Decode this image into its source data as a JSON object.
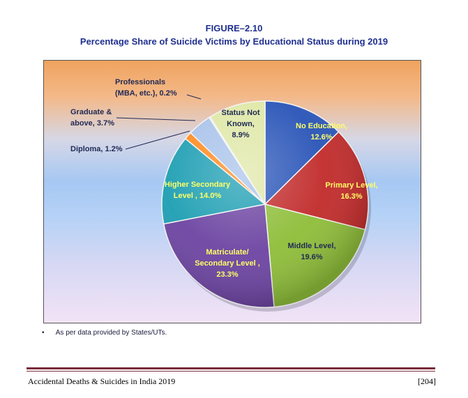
{
  "figure": {
    "number": "FIGURE–2.10",
    "title": "Percentage Share of Suicide Victims by Educational Status during 2019"
  },
  "chart_data": {
    "type": "pie",
    "title": "Percentage Share of Suicide Victims by Educational Status during 2019",
    "unit": "%",
    "slices": [
      {
        "label": "No Education",
        "value": 12.6,
        "color": "#2a55b8",
        "text_color": "#ffff66",
        "label_lines": [
          "No Education,",
          "12.6%"
        ]
      },
      {
        "label": "Primary Level",
        "value": 16.3,
        "color": "#c22c2c",
        "text_color": "#ffff66",
        "label_lines": [
          "Primary Level,",
          "16.3%"
        ]
      },
      {
        "label": "Middle Level",
        "value": 19.6,
        "color": "#8fbe3a",
        "text_color": "#1f2a55",
        "label_lines": [
          "Middle Level,",
          "19.6%"
        ]
      },
      {
        "label": "Matriculate/ Secondary Level",
        "value": 23.3,
        "color": "#6d45a2",
        "text_color": "#ffff66",
        "label_lines": [
          "Matriculate/",
          "Secondary Level ,",
          "23.3%"
        ]
      },
      {
        "label": "Higher Secondary Level",
        "value": 14.0,
        "color": "#1f9fb3",
        "text_color": "#ffff66",
        "label_lines": [
          "Higher Secondary",
          "Level , 14.0%"
        ]
      },
      {
        "label": "Diploma",
        "value": 1.2,
        "color": "#ff8a1e",
        "text_color": "#1f2a55",
        "label_lines": [
          "Diploma, 1.2%"
        ]
      },
      {
        "label": "Graduate & above",
        "value": 3.7,
        "color": "#a9c3ea",
        "text_color": "#1f2a55",
        "label_lines": [
          "Graduate &",
          "above, 3.7%"
        ]
      },
      {
        "label": "Professionals (MBA, etc.)",
        "value": 0.2,
        "color": "#e8dcc4",
        "text_color": "#1f2a55",
        "label_lines": [
          "Professionals",
          "(MBA, etc.), 0.2%"
        ]
      },
      {
        "label": "Status Not Known",
        "value": 8.9,
        "color": "#dfe7a6",
        "text_color": "#1f2a55",
        "label_lines": [
          "Status Not",
          "Known,",
          "8.9%"
        ]
      }
    ]
  },
  "footnote": {
    "bullet": "•",
    "text": "As per data provided by States/UTs."
  },
  "footer": {
    "left": "Accidental Deaths & Suicides in India 2019",
    "right": "[204]"
  }
}
